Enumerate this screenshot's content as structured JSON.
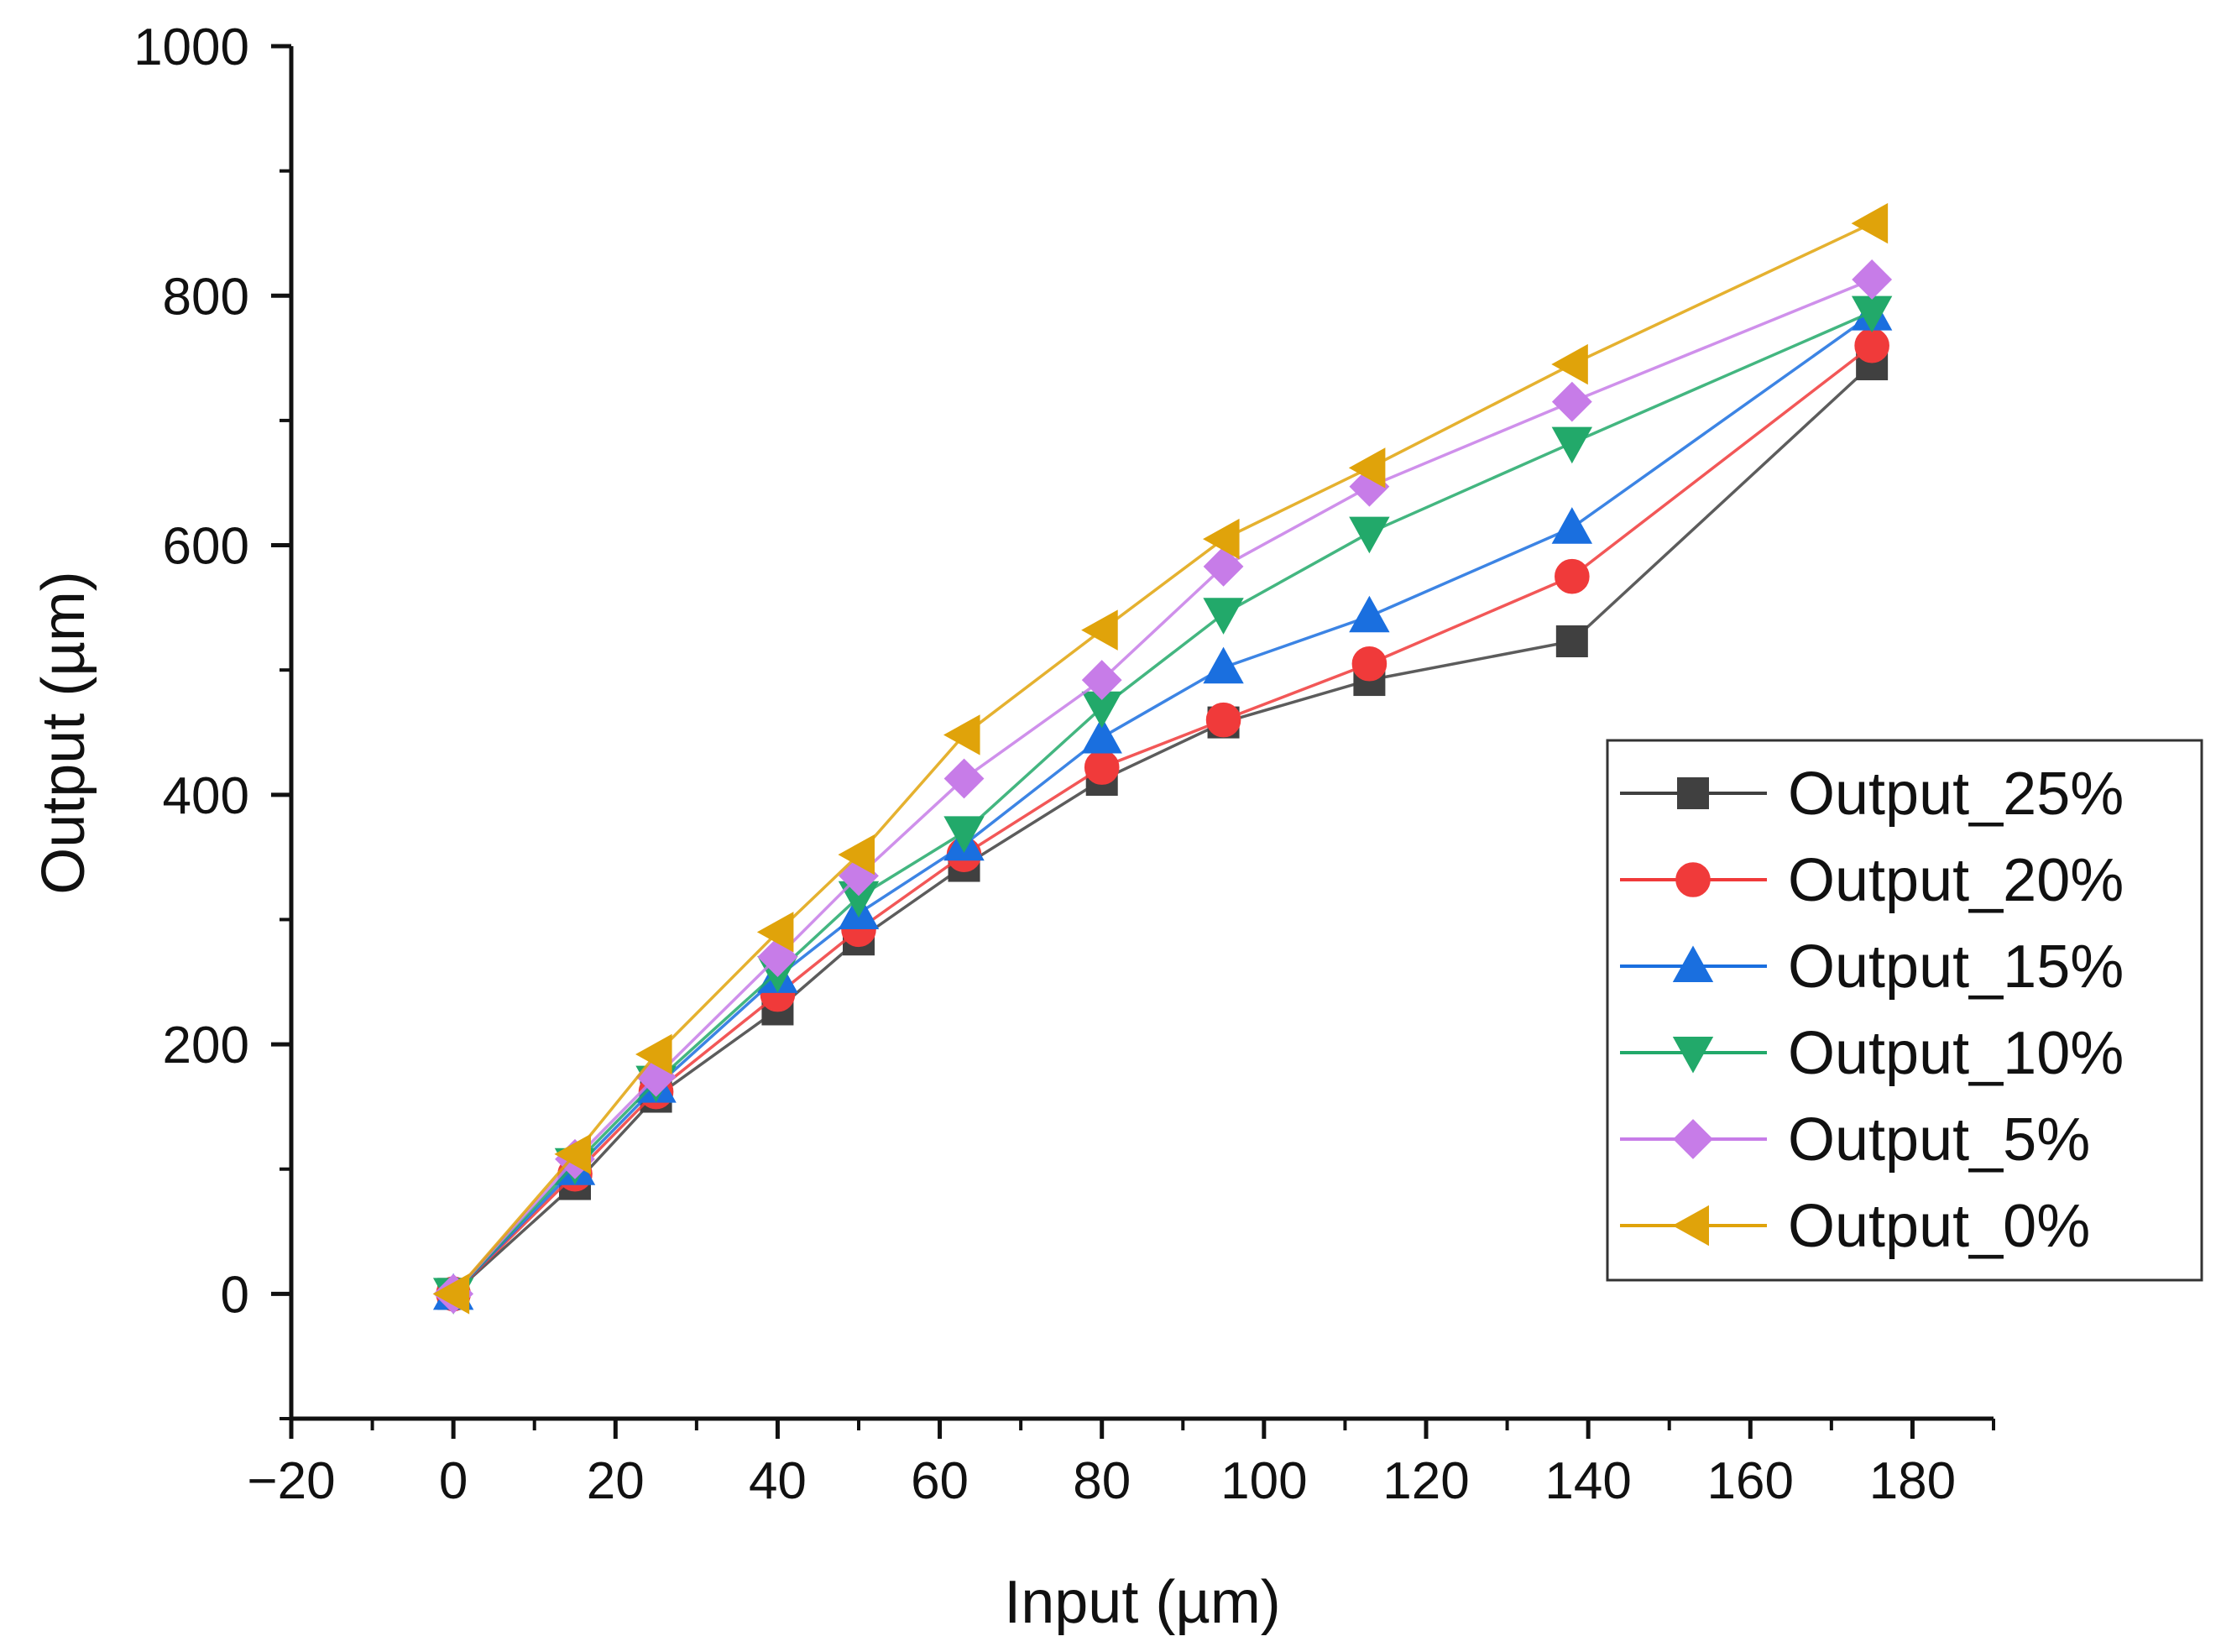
{
  "chart_data": {
    "type": "line",
    "title": "",
    "xlabel": "Input (µm)",
    "ylabel": "Output (µm)",
    "xlim": [
      -20,
      190
    ],
    "ylim": [
      -100,
      1000
    ],
    "x_ticks": [
      -20,
      0,
      20,
      40,
      60,
      80,
      100,
      120,
      140,
      160,
      180
    ],
    "x_tick_labels": [
      "−20",
      "0",
      "20",
      "40",
      "60",
      "80",
      "100",
      "120",
      "140",
      "160",
      "180"
    ],
    "y_ticks": [
      0,
      200,
      400,
      600,
      800,
      1000
    ],
    "y_tick_labels": [
      "0",
      "200",
      "400",
      "600",
      "800",
      "1000"
    ],
    "grid": false,
    "legend_position": "right",
    "x": [
      0,
      15,
      25,
      40,
      50,
      63,
      80,
      95,
      113,
      138,
      175
    ],
    "series": [
      {
        "name": "Output_25%",
        "color": "#404040",
        "marker": "square",
        "values": [
          0,
          88,
          158,
          228,
          284,
          343,
          412,
          458,
          492,
          523,
          745
        ]
      },
      {
        "name": "Output_20%",
        "color": "#f03a3a",
        "marker": "circle",
        "values": [
          0,
          96,
          162,
          240,
          292,
          352,
          422,
          460,
          505,
          575,
          760
        ]
      },
      {
        "name": "Output_15%",
        "color": "#1a6fdf",
        "marker": "triangle-up",
        "values": [
          0,
          100,
          166,
          254,
          305,
          360,
          446,
          502,
          543,
          614,
          785
        ]
      },
      {
        "name": "Output_10%",
        "color": "#22a96a",
        "marker": "triangle-down",
        "values": [
          0,
          104,
          170,
          258,
          318,
          370,
          470,
          545,
          610,
          682,
          787
        ]
      },
      {
        "name": "Output_5%",
        "color": "#c77ce8",
        "marker": "diamond",
        "values": [
          0,
          108,
          174,
          270,
          335,
          413,
          492,
          583,
          647,
          715,
          813
        ]
      },
      {
        "name": "Output_0%",
        "color": "#e0a30a",
        "marker": "triangle-left",
        "values": [
          0,
          112,
          192,
          290,
          352,
          448,
          532,
          605,
          662,
          745,
          858
        ]
      }
    ]
  }
}
